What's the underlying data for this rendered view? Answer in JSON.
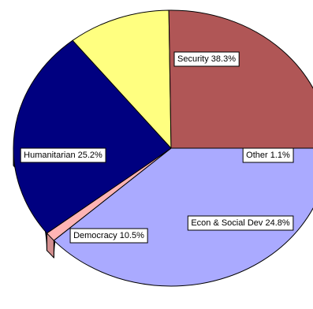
{
  "chart_data": {
    "type": "pie",
    "style": "3d",
    "legend": "none",
    "slices": [
      {
        "label": "Security 38.3%",
        "category": "Security",
        "value": 38.3,
        "color": "#aaaaff",
        "side_color": "#7e7ed0"
      },
      {
        "label": "Other 1.1%",
        "category": "Other",
        "value": 1.1,
        "color": "#ffb4b4",
        "side_color": "#d48f8f"
      },
      {
        "label": "Econ & Social Dev 24.8%",
        "category": "Econ & Social Dev",
        "value": 24.8,
        "color": "#000080",
        "side_color": "#00004e"
      },
      {
        "label": "Democracy 10.5%",
        "category": "Democracy",
        "value": 10.5,
        "color": "#ffff80",
        "side_color": "#8a8a32"
      },
      {
        "label": "Humanitarian 25.2%",
        "category": "Humanitarian",
        "value": 25.2,
        "color": "#b05656",
        "side_color": "#7a3838"
      }
    ]
  }
}
